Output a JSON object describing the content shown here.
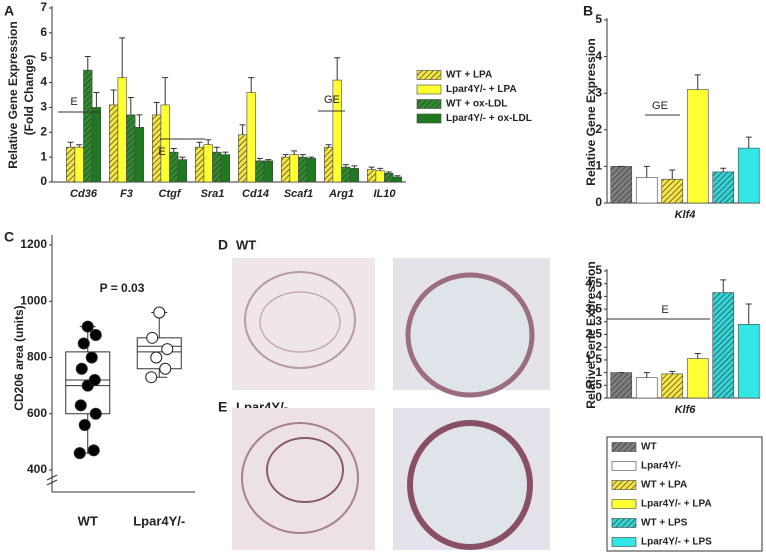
{
  "figure": {
    "panel_labels": [
      "A",
      "B",
      "C",
      "D",
      "E"
    ],
    "image_labels": [
      "WT",
      "Lpar4Y/-"
    ]
  },
  "chart_data": [
    {
      "type": "bar",
      "ylabel": [
        "Relative Gene Expression",
        "(Fold Change)"
      ],
      "categories": [
        "Cd36",
        "F3",
        "Ctgf",
        "Sra1",
        "Cd14",
        "Scaf1",
        "Arg1",
        "IL10"
      ],
      "ylim": [
        0,
        7
      ],
      "yticks": [
        0,
        1,
        2,
        3,
        4,
        5,
        6,
        7
      ],
      "annotations": [
        "E",
        "E",
        "GE"
      ],
      "series": [
        {
          "name": "WT + LPA",
          "color": "#f5e642",
          "hatched": true,
          "values": [
            1.4,
            3.1,
            2.7,
            1.4,
            1.9,
            1.0,
            1.4,
            0.5
          ],
          "errors": [
            0.2,
            0.6,
            0.5,
            0.2,
            0.4,
            0.1,
            0.1,
            0.1
          ]
        },
        {
          "name": "Lpar4Y/- + LPA",
          "color": "#ffff33",
          "hatched": false,
          "values": [
            1.4,
            4.2,
            3.1,
            1.5,
            3.6,
            1.1,
            4.1,
            0.45
          ],
          "errors": [
            0.1,
            1.6,
            1.1,
            0.2,
            0.6,
            0.15,
            0.9,
            0.1
          ]
        },
        {
          "name": "WT + ox-LDL",
          "color": "#2e8b2e",
          "hatched": true,
          "values": [
            4.5,
            2.7,
            1.2,
            1.2,
            0.85,
            1.0,
            0.6,
            0.35
          ],
          "errors": [
            0.55,
            0.7,
            0.15,
            0.2,
            0.1,
            0.1,
            0.1,
            0.05
          ]
        },
        {
          "name": "Lpar4Y/- + ox-LDL",
          "color": "#1f7a1f",
          "hatched": false,
          "values": [
            3.0,
            2.2,
            0.9,
            1.1,
            0.85,
            0.95,
            0.55,
            0.2
          ],
          "errors": [
            0.6,
            0.5,
            0.1,
            0.1,
            0.05,
            0.05,
            0.1,
            0.05
          ]
        }
      ]
    },
    {
      "type": "bar",
      "ylabel": [
        "Relative Gene Expression"
      ],
      "categories": [
        "Klf4"
      ],
      "ylim": [
        0,
        5
      ],
      "yticks": [
        0,
        1,
        2,
        3,
        4,
        5
      ],
      "annotations": [
        "GE"
      ],
      "series": [
        {
          "name": "WT",
          "color": "#7f7f7f",
          "hatched": true,
          "values": [
            1.0
          ],
          "errors": [
            0.0
          ]
        },
        {
          "name": "Lpar4Y/-",
          "color": "#ffffff",
          "hatched": false,
          "values": [
            0.7
          ],
          "errors": [
            0.3
          ]
        },
        {
          "name": "WT + LPA",
          "color": "#f5e642",
          "hatched": true,
          "values": [
            0.65
          ],
          "errors": [
            0.25
          ]
        },
        {
          "name": "Lpar4Y/- + LPA",
          "color": "#ffff33",
          "hatched": false,
          "values": [
            3.1
          ],
          "errors": [
            0.4
          ]
        },
        {
          "name": "WT + LPS",
          "color": "#33d6d6",
          "hatched": true,
          "values": [
            0.85
          ],
          "errors": [
            0.1
          ]
        },
        {
          "name": "Lpar4Y/- + LPS",
          "color": "#33e6e6",
          "hatched": false,
          "values": [
            1.5
          ],
          "errors": [
            0.3
          ]
        }
      ]
    },
    {
      "type": "bar",
      "ylabel": [
        "Relative Gene Expression"
      ],
      "categories": [
        "Klf6"
      ],
      "ylim": [
        0,
        5
      ],
      "yticks": [
        0,
        0.5,
        1,
        1.5,
        2,
        2.5,
        3,
        3.5,
        4,
        4.5,
        5
      ],
      "annotations": [
        "E"
      ],
      "series": [
        {
          "color": "#7f7f7f",
          "hatched": true,
          "values": [
            1.0
          ],
          "errors": [
            0.0
          ]
        },
        {
          "color": "#ffffff",
          "hatched": false,
          "values": [
            0.8
          ],
          "errors": [
            0.2
          ]
        },
        {
          "color": "#f5e642",
          "hatched": true,
          "values": [
            0.95
          ],
          "errors": [
            0.1
          ]
        },
        {
          "color": "#ffff33",
          "hatched": false,
          "values": [
            1.55
          ],
          "errors": [
            0.2
          ]
        },
        {
          "color": "#33d6d6",
          "hatched": true,
          "values": [
            4.15
          ],
          "errors": [
            0.5
          ]
        },
        {
          "color": "#33e6e6",
          "hatched": false,
          "values": [
            2.9
          ],
          "errors": [
            0.8
          ]
        }
      ]
    },
    {
      "type": "box",
      "title": "P = 0.03",
      "ylabel": "CD206 area (units)",
      "categories": [
        "WT",
        "Lpar4Y/-"
      ],
      "ylim": [
        400,
        1200
      ],
      "yticks": [
        400,
        600,
        800,
        1000,
        1200
      ],
      "boxes": [
        {
          "color": "#000000",
          "whisker_low": 460,
          "q1": 600,
          "median": 720,
          "mean": 700,
          "q3": 820,
          "whisker_high": 910,
          "points": [
            460,
            470,
            560,
            600,
            630,
            700,
            720,
            760,
            800,
            850,
            880,
            910
          ]
        },
        {
          "color": "#ffffff",
          "whisker_low": 730,
          "q1": 760,
          "median": 820,
          "mean": 840,
          "q3": 870,
          "whisker_high": 960,
          "points": [
            730,
            760,
            800,
            830,
            870,
            960
          ]
        }
      ]
    }
  ]
}
